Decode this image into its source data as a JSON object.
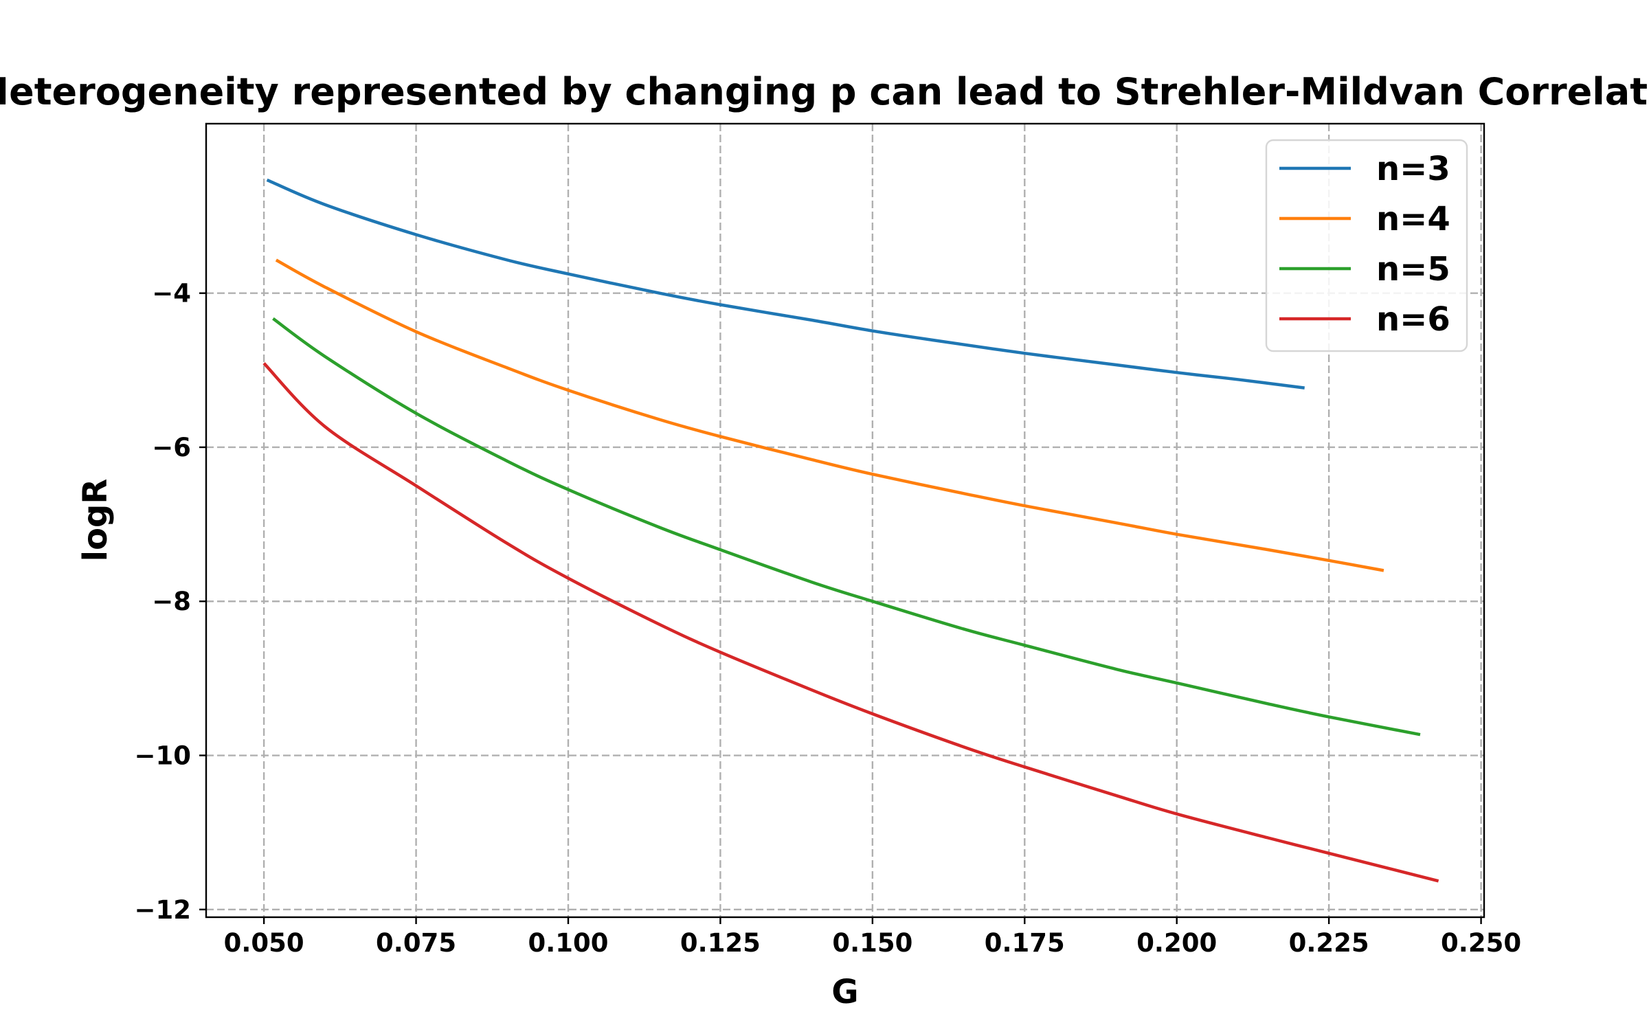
{
  "chart_data": {
    "type": "line",
    "title": "Heterogeneity represented by changing p can lead to Strehler-Mildvan Correlation",
    "xlabel": "G",
    "ylabel": "logR",
    "xlim": [
      0.0405,
      0.2505
    ],
    "ylim": [
      -12.1,
      -1.8
    ],
    "xticks": [
      0.05,
      0.075,
      0.1,
      0.125,
      0.15,
      0.175,
      0.2,
      0.225,
      0.25
    ],
    "xtick_labels": [
      "0.050",
      "0.075",
      "0.100",
      "0.125",
      "0.150",
      "0.175",
      "0.200",
      "0.225",
      "0.250"
    ],
    "yticks": [
      -4,
      -6,
      -8,
      -10,
      -12
    ],
    "ytick_labels": [
      "−4",
      "−6",
      "−8",
      "−10",
      "−12"
    ],
    "grid": true,
    "legend_position": "top-right",
    "series": [
      {
        "name": "n=3",
        "color": "#1f77b4",
        "x": [
          0.0505,
          0.06,
          0.075,
          0.09,
          0.1,
          0.115,
          0.125,
          0.14,
          0.15,
          0.16,
          0.175,
          0.19,
          0.2,
          0.21,
          0.221
        ],
        "y": [
          -2.53,
          -2.85,
          -3.24,
          -3.57,
          -3.75,
          -4.0,
          -4.15,
          -4.35,
          -4.49,
          -4.61,
          -4.78,
          -4.93,
          -5.03,
          -5.12,
          -5.23
        ]
      },
      {
        "name": "n=4",
        "color": "#ff7f0e",
        "x": [
          0.052,
          0.06,
          0.075,
          0.09,
          0.1,
          0.115,
          0.125,
          0.14,
          0.15,
          0.165,
          0.175,
          0.19,
          0.2,
          0.215,
          0.225,
          0.234
        ],
        "y": [
          -3.57,
          -3.92,
          -4.5,
          -4.97,
          -5.26,
          -5.64,
          -5.86,
          -6.16,
          -6.35,
          -6.6,
          -6.76,
          -6.98,
          -7.13,
          -7.33,
          -7.47,
          -7.6
        ]
      },
      {
        "name": "n=5",
        "color": "#2ca02c",
        "x": [
          0.0515,
          0.06,
          0.075,
          0.09,
          0.1,
          0.115,
          0.125,
          0.14,
          0.15,
          0.165,
          0.175,
          0.19,
          0.2,
          0.215,
          0.225,
          0.24
        ],
        "y": [
          -4.33,
          -4.82,
          -5.56,
          -6.18,
          -6.55,
          -7.04,
          -7.33,
          -7.75,
          -8.0,
          -8.36,
          -8.57,
          -8.88,
          -9.06,
          -9.33,
          -9.5,
          -9.73
        ]
      },
      {
        "name": "n=6",
        "color": "#d62728",
        "x": [
          0.05,
          0.06,
          0.075,
          0.09,
          0.1,
          0.115,
          0.125,
          0.14,
          0.15,
          0.165,
          0.175,
          0.19,
          0.2,
          0.215,
          0.225,
          0.243
        ],
        "y": [
          -4.91,
          -5.73,
          -6.5,
          -7.25,
          -7.7,
          -8.3,
          -8.66,
          -9.15,
          -9.46,
          -9.89,
          -10.15,
          -10.52,
          -10.76,
          -11.07,
          -11.27,
          -11.63
        ]
      }
    ]
  }
}
